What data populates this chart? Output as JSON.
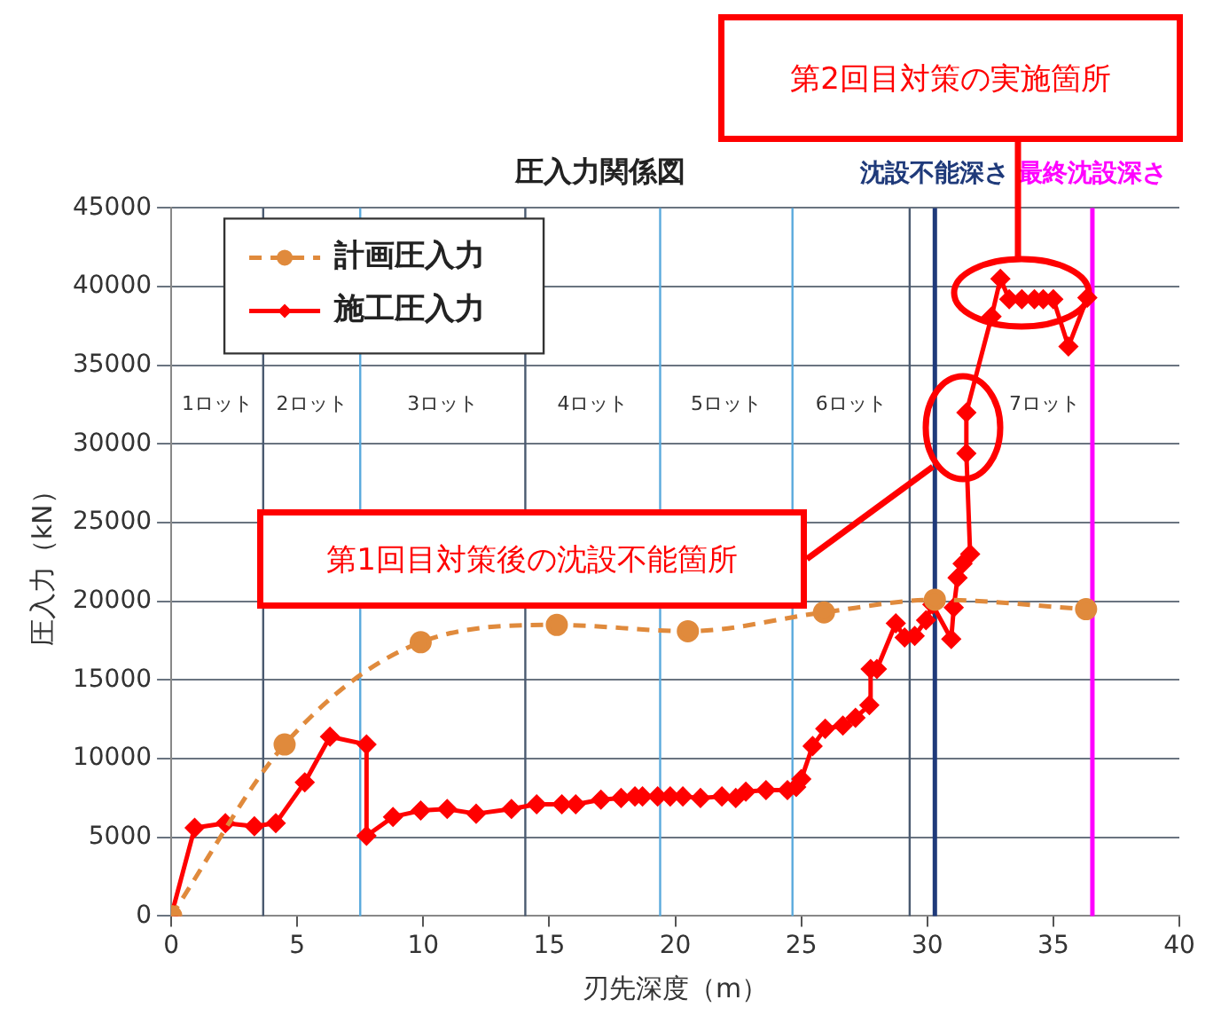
{
  "chart_data": {
    "type": "line",
    "title": "圧入力関係図",
    "xlabel": "刃先深度（m）",
    "ylabel": "圧入力（kN）",
    "xlim": [
      0,
      40
    ],
    "xticks": [
      0,
      5,
      10,
      15,
      20,
      25,
      30,
      35,
      40
    ],
    "ylim": [
      0,
      45000
    ],
    "yticks": [
      0,
      5000,
      10000,
      15000,
      20000,
      25000,
      30000,
      35000,
      40000,
      45000
    ],
    "grid": "y",
    "legend": "top left",
    "series": [
      {
        "name": "計画圧入力",
        "color": "#e08a3c",
        "marker": "circle",
        "line_style": "dashed",
        "x": [
          0,
          4.5,
          9.9,
          15.3,
          20.5,
          25.9,
          30.3,
          36.3
        ],
        "values": [
          0,
          10900,
          17400,
          18500,
          18100,
          19300,
          20100,
          19500
        ]
      },
      {
        "name": "施工圧入力",
        "color": "#ff0000",
        "marker": "diamond",
        "line_style": "solid",
        "x": [
          0,
          0.93,
          2.15,
          3.3,
          4.15,
          5.3,
          6.3,
          7.75,
          7.75,
          8.8,
          9.9,
          10.95,
          12.1,
          13.5,
          14.5,
          15.5,
          16.05,
          17.05,
          17.85,
          18.4,
          18.7,
          19.3,
          19.8,
          20.3,
          21.0,
          21.85,
          22.4,
          22.8,
          23.6,
          24.45,
          24.8,
          25.0,
          25.45,
          25.95,
          26.65,
          27.15,
          27.7,
          27.75,
          28.0,
          28.75,
          29.1,
          29.5,
          29.95,
          30.2,
          30.95,
          31.05,
          31.2,
          31.4,
          31.7,
          31.55,
          31.55,
          32.55,
          32.9,
          33.25,
          33.75,
          34.25,
          34.6,
          35.0,
          35.6,
          36.35
        ],
        "values": [
          0,
          5600,
          5900,
          5700,
          5900,
          8500,
          11400,
          10900,
          5100,
          6300,
          6700,
          6800,
          6500,
          6800,
          7100,
          7100,
          7100,
          7400,
          7500,
          7600,
          7600,
          7600,
          7600,
          7600,
          7500,
          7600,
          7500,
          7900,
          8000,
          8000,
          8200,
          8700,
          10800,
          11900,
          12100,
          12600,
          13400,
          15700,
          15700,
          18600,
          17700,
          17800,
          18800,
          19800,
          17600,
          19600,
          21500,
          22400,
          23000,
          29400,
          32000,
          38100,
          40500,
          39200,
          39200,
          39200,
          39200,
          39200,
          36200,
          39300
        ]
      }
    ],
    "ref_lines": [
      {
        "axis": "x",
        "value": 3.65,
        "color": "#4a5a70"
      },
      {
        "axis": "x",
        "value": 7.5,
        "color": "#5aaadd"
      },
      {
        "axis": "x",
        "value": 14.05,
        "color": "#4a5a70"
      },
      {
        "axis": "x",
        "value": 19.4,
        "color": "#5aaadd"
      },
      {
        "axis": "x",
        "value": 24.65,
        "color": "#5aaadd"
      },
      {
        "axis": "x",
        "value": 29.3,
        "color": "#4a5a70"
      },
      {
        "axis": "x",
        "value": 30.3,
        "color": "#1f3a7a",
        "label": "沈設不能深さ"
      },
      {
        "axis": "x",
        "value": 36.55,
        "color": "#ff00ff",
        "label": "最終沈設深さ"
      }
    ],
    "annotations": [
      "1ロット",
      "2ロット",
      "3ロット",
      "4ロット",
      "5ロット",
      "6ロット",
      "7ロット",
      "第1回目対策後の沈設不能箇所",
      "第2回目対策の実施箇所"
    ]
  }
}
